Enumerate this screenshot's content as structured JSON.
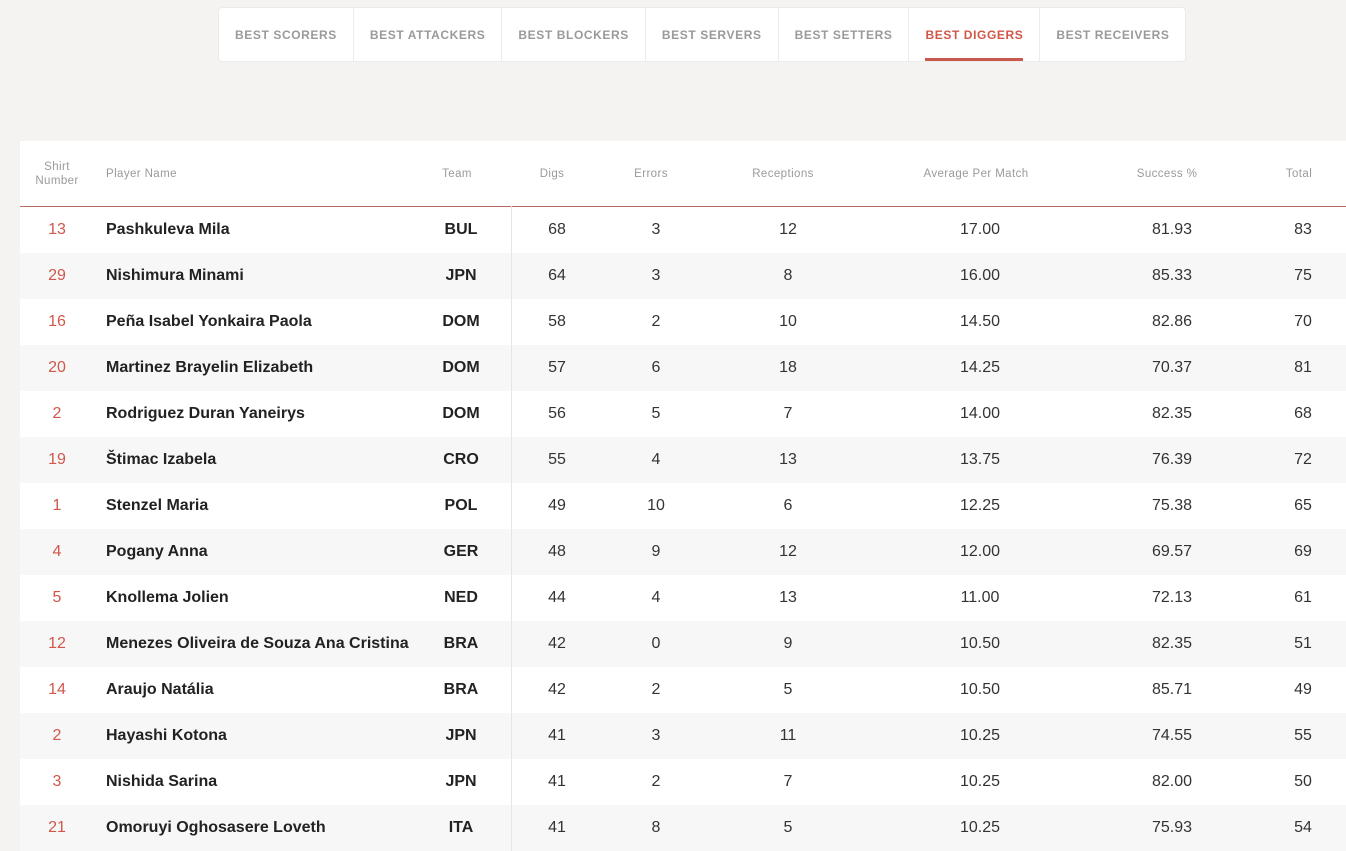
{
  "tabs": [
    {
      "label": "BEST SCORERS",
      "active": false
    },
    {
      "label": "BEST ATTACKERS",
      "active": false
    },
    {
      "label": "BEST BLOCKERS",
      "active": false
    },
    {
      "label": "BEST SERVERS",
      "active": false
    },
    {
      "label": "BEST SETTERS",
      "active": false
    },
    {
      "label": "BEST DIGGERS",
      "active": true
    },
    {
      "label": "BEST RECEIVERS",
      "active": false
    }
  ],
  "accent_color": "#d2574a",
  "columns": {
    "shirt_line1": "Shirt",
    "shirt_line2": "Number",
    "player": "Player Name",
    "team": "Team",
    "digs": "Digs",
    "errors": "Errors",
    "receptions": "Receptions",
    "avg": "Average Per Match",
    "success": "Success %",
    "total": "Total"
  },
  "rows": [
    {
      "shirt": "13",
      "player": "Pashkuleva Mila",
      "team": "BUL",
      "digs": "68",
      "errors": "3",
      "receptions": "12",
      "avg": "17.00",
      "success": "81.93",
      "total": "83"
    },
    {
      "shirt": "29",
      "player": "Nishimura Minami",
      "team": "JPN",
      "digs": "64",
      "errors": "3",
      "receptions": "8",
      "avg": "16.00",
      "success": "85.33",
      "total": "75"
    },
    {
      "shirt": "16",
      "player": "Peña Isabel Yonkaira Paola",
      "team": "DOM",
      "digs": "58",
      "errors": "2",
      "receptions": "10",
      "avg": "14.50",
      "success": "82.86",
      "total": "70"
    },
    {
      "shirt": "20",
      "player": "Martinez Brayelin Elizabeth",
      "team": "DOM",
      "digs": "57",
      "errors": "6",
      "receptions": "18",
      "avg": "14.25",
      "success": "70.37",
      "total": "81"
    },
    {
      "shirt": "2",
      "player": "Rodriguez Duran Yaneirys",
      "team": "DOM",
      "digs": "56",
      "errors": "5",
      "receptions": "7",
      "avg": "14.00",
      "success": "82.35",
      "total": "68"
    },
    {
      "shirt": "19",
      "player": "Štimac Izabela",
      "team": "CRO",
      "digs": "55",
      "errors": "4",
      "receptions": "13",
      "avg": "13.75",
      "success": "76.39",
      "total": "72"
    },
    {
      "shirt": "1",
      "player": "Stenzel Maria",
      "team": "POL",
      "digs": "49",
      "errors": "10",
      "receptions": "6",
      "avg": "12.25",
      "success": "75.38",
      "total": "65"
    },
    {
      "shirt": "4",
      "player": "Pogany Anna",
      "team": "GER",
      "digs": "48",
      "errors": "9",
      "receptions": "12",
      "avg": "12.00",
      "success": "69.57",
      "total": "69"
    },
    {
      "shirt": "5",
      "player": "Knollema Jolien",
      "team": "NED",
      "digs": "44",
      "errors": "4",
      "receptions": "13",
      "avg": "11.00",
      "success": "72.13",
      "total": "61"
    },
    {
      "shirt": "12",
      "player": "Menezes Oliveira de Souza Ana Cristina",
      "team": "BRA",
      "digs": "42",
      "errors": "0",
      "receptions": "9",
      "avg": "10.50",
      "success": "82.35",
      "total": "51"
    },
    {
      "shirt": "14",
      "player": "Araujo Natália",
      "team": "BRA",
      "digs": "42",
      "errors": "2",
      "receptions": "5",
      "avg": "10.50",
      "success": "85.71",
      "total": "49"
    },
    {
      "shirt": "2",
      "player": "Hayashi Kotona",
      "team": "JPN",
      "digs": "41",
      "errors": "3",
      "receptions": "11",
      "avg": "10.25",
      "success": "74.55",
      "total": "55"
    },
    {
      "shirt": "3",
      "player": "Nishida Sarina",
      "team": "JPN",
      "digs": "41",
      "errors": "2",
      "receptions": "7",
      "avg": "10.25",
      "success": "82.00",
      "total": "50"
    },
    {
      "shirt": "21",
      "player": "Omoruyi Oghosasere Loveth",
      "team": "ITA",
      "digs": "41",
      "errors": "8",
      "receptions": "5",
      "avg": "10.25",
      "success": "75.93",
      "total": "54"
    }
  ]
}
